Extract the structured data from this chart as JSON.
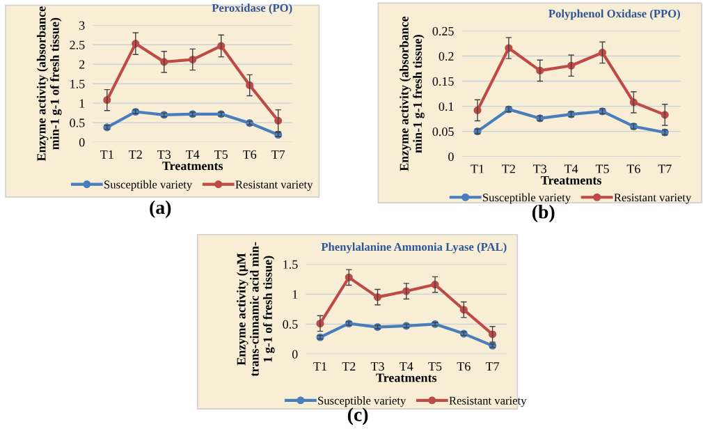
{
  "chart_data": [
    {
      "type": "line",
      "title": "Peroxidase (PO)",
      "xlabel": "Treatments",
      "ylabel": "Enzyme activity (absorbance\nmin-1 g-1 of fresh tissue)",
      "categories": [
        "T1",
        "T2",
        "T3",
        "T4",
        "T5",
        "T6",
        "T7"
      ],
      "ylim": [
        0,
        3
      ],
      "yticks": [
        0,
        {
          "value": 0.5,
          "label": "0.5"
        },
        1,
        {
          "value": 1.5,
          "label": "1.5"
        },
        2,
        {
          "value": 2.5,
          "label": "2.5"
        },
        3
      ],
      "grid": "y",
      "legend": "bottom",
      "marker": "circle",
      "line_style": "solid",
      "annotations": [
        "(a)"
      ],
      "series": [
        {
          "name": "Susceptible variety",
          "color": "#4a7ebb",
          "values": [
            0.38,
            0.78,
            0.7,
            0.72,
            0.72,
            0.49,
            0.19
          ],
          "errors": [
            0.05,
            0.05,
            0.05,
            0.05,
            0.05,
            0.05,
            0.05
          ]
        },
        {
          "name": "Resistant variety",
          "color": "#be4b48",
          "values": [
            1.08,
            2.53,
            2.06,
            2.12,
            2.47,
            1.46,
            0.55
          ],
          "errors": [
            0.27,
            0.28,
            0.27,
            0.27,
            0.28,
            0.27,
            0.28
          ]
        }
      ]
    },
    {
      "type": "line",
      "title": "Polyphenol Oxidase (PPO)",
      "xlabel": "Treatments",
      "ylabel": "Enzyme activity (absorbance\nmin-1 g-1 fresh tissue)",
      "categories": [
        "T1",
        "T2",
        "T3",
        "T4",
        "T5",
        "T6",
        "T7"
      ],
      "ylim": [
        0,
        0.25
      ],
      "yticks": [
        0,
        {
          "value": 0.05,
          "label": "0.05"
        },
        {
          "value": 0.1,
          "label": "0.1"
        },
        {
          "value": 0.15,
          "label": "0.15"
        },
        {
          "value": 0.2,
          "label": "0.2"
        },
        {
          "value": 0.25,
          "label": "0.25"
        }
      ],
      "grid": "y",
      "legend": "bottom",
      "marker": "circle",
      "line_style": "solid",
      "annotations": [
        "(b)"
      ],
      "series": [
        {
          "name": "Susceptible variety",
          "color": "#4a7ebb",
          "values": [
            0.05,
            0.094,
            0.076,
            0.084,
            0.09,
            0.06,
            0.048
          ],
          "errors": [
            0.005,
            0.005,
            0.005,
            0.005,
            0.005,
            0.005,
            0.005
          ]
        },
        {
          "name": "Resistant variety",
          "color": "#be4b48",
          "values": [
            0.092,
            0.216,
            0.171,
            0.181,
            0.207,
            0.108,
            0.083
          ],
          "errors": [
            0.021,
            0.021,
            0.021,
            0.021,
            0.021,
            0.021,
            0.021
          ]
        }
      ]
    },
    {
      "type": "line",
      "title": "Phenylalanine Ammonia Lyase (PAL)",
      "xlabel": "Treatments",
      "ylabel": "Enzyme activity (µM\ntrans-cinnamic acid min-\n1 g-1 of fresh tissue)",
      "categories": [
        "T1",
        "T2",
        "T3",
        "T4",
        "T5",
        "T6",
        "T7"
      ],
      "ylim": [
        0,
        1.5
      ],
      "yticks": [
        0,
        {
          "value": 0.5,
          "label": "0.5"
        },
        1,
        {
          "value": 1.5,
          "label": "1.5"
        }
      ],
      "grid": "y",
      "legend": "bottom",
      "marker": "circle",
      "line_style": "solid",
      "annotations": [
        "(c)"
      ],
      "series": [
        {
          "name": "Susceptible variety",
          "color": "#4a7ebb",
          "values": [
            0.28,
            0.51,
            0.45,
            0.47,
            0.5,
            0.34,
            0.14
          ],
          "errors": [
            0.03,
            0.03,
            0.03,
            0.03,
            0.03,
            0.03,
            0.03
          ]
        },
        {
          "name": "Resistant variety",
          "color": "#be4b48",
          "values": [
            0.51,
            1.28,
            0.95,
            1.05,
            1.16,
            0.74,
            0.33
          ],
          "errors": [
            0.13,
            0.13,
            0.13,
            0.13,
            0.13,
            0.13,
            0.13
          ]
        }
      ]
    }
  ]
}
